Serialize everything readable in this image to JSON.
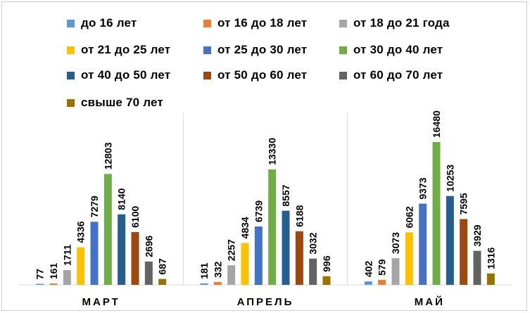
{
  "chart_data": {
    "type": "bar",
    "title": "",
    "xlabel": "",
    "ylabel": "",
    "categories": [
      "МАРТ",
      "АПРЕЛЬ",
      "МАЙ"
    ],
    "ylim": [
      0,
      18000
    ],
    "grid": false,
    "legend_position": "top",
    "series": [
      {
        "name": "до 16 лет",
        "color": "#5B9BD5",
        "values": [
          77,
          181,
          402
        ]
      },
      {
        "name": "от 16 до 18 лет",
        "color": "#ED7D31",
        "values": [
          161,
          332,
          579
        ]
      },
      {
        "name": "от 18 до 21 года",
        "color": "#A5A5A5",
        "values": [
          1711,
          2257,
          3073
        ]
      },
      {
        "name": "от 21 до 25 лет",
        "color": "#FFC000",
        "values": [
          4336,
          4834,
          6062
        ]
      },
      {
        "name": "от 25 до 30 лет",
        "color": "#4472C4",
        "values": [
          7279,
          6739,
          9373
        ]
      },
      {
        "name": "от 30 до 40 лет",
        "color": "#70AD47",
        "values": [
          12803,
          13330,
          16480
        ]
      },
      {
        "name": "от 40 до 50 лет",
        "color": "#255E91",
        "values": [
          8140,
          8557,
          10253
        ]
      },
      {
        "name": "от 50 до 60 лет",
        "color": "#9E480E",
        "values": [
          6100,
          6188,
          7595
        ]
      },
      {
        "name": "от 60 до 70 лет",
        "color": "#636363",
        "values": [
          2696,
          3032,
          3929
        ]
      },
      {
        "name": "свыше 70 лет",
        "color": "#997300",
        "values": [
          687,
          996,
          1316
        ]
      }
    ]
  }
}
